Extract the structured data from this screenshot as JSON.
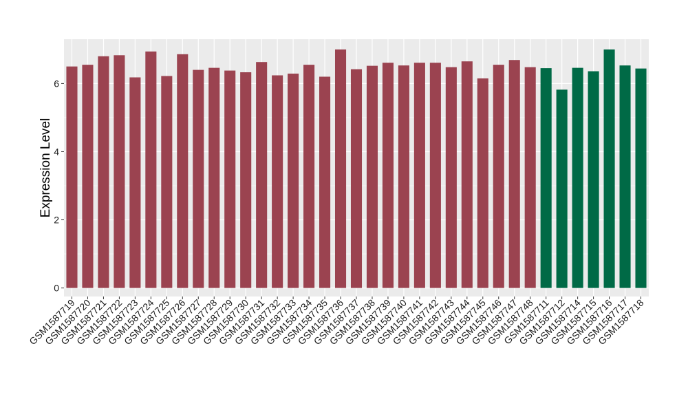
{
  "chart_data": {
    "type": "bar",
    "title": "",
    "xlabel": "",
    "ylabel": "Expression Level",
    "ylim": [
      -0.25,
      7.3
    ],
    "yticks": [
      0,
      2,
      4,
      6
    ],
    "grid": true,
    "legend": "none",
    "colors": {
      "group1": "#9b4350",
      "group2": "#006a46",
      "panel": "#ebebeb",
      "grid": "#ffffff"
    },
    "categories": [
      "GSM1587719",
      "GSM1587720",
      "GSM1587721",
      "GSM1587722",
      "GSM1587723",
      "GSM1587724",
      "GSM1587725",
      "GSM1587726",
      "GSM1587727",
      "GSM1587728",
      "GSM1587729",
      "GSM1587730",
      "GSM1587731",
      "GSM1587732",
      "GSM1587733",
      "GSM1587734",
      "GSM1587735",
      "GSM1587736",
      "GSM1587737",
      "GSM1587738",
      "GSM1587739",
      "GSM1587740",
      "GSM1587741",
      "GSM1587742",
      "GSM1587743",
      "GSM1587744",
      "GSM1587745",
      "GSM1587746",
      "GSM1587747",
      "GSM1587748",
      "GSM1587711",
      "GSM1587712",
      "GSM1587714",
      "GSM1587715",
      "GSM1587716",
      "GSM1587717",
      "GSM1587718"
    ],
    "values": [
      6.5,
      6.55,
      6.8,
      6.83,
      6.18,
      6.94,
      6.22,
      6.86,
      6.4,
      6.46,
      6.38,
      6.33,
      6.63,
      6.24,
      6.29,
      6.55,
      6.2,
      7.0,
      6.42,
      6.52,
      6.61,
      6.53,
      6.61,
      6.61,
      6.48,
      6.65,
      6.15,
      6.55,
      6.69,
      6.48,
      6.45,
      5.82,
      6.46,
      6.36,
      7.0,
      6.53,
      6.44
    ],
    "groups": [
      "group1",
      "group1",
      "group1",
      "group1",
      "group1",
      "group1",
      "group1",
      "group1",
      "group1",
      "group1",
      "group1",
      "group1",
      "group1",
      "group1",
      "group1",
      "group1",
      "group1",
      "group1",
      "group1",
      "group1",
      "group1",
      "group1",
      "group1",
      "group1",
      "group1",
      "group1",
      "group1",
      "group1",
      "group1",
      "group1",
      "group2",
      "group2",
      "group2",
      "group2",
      "group2",
      "group2",
      "group2"
    ]
  }
}
